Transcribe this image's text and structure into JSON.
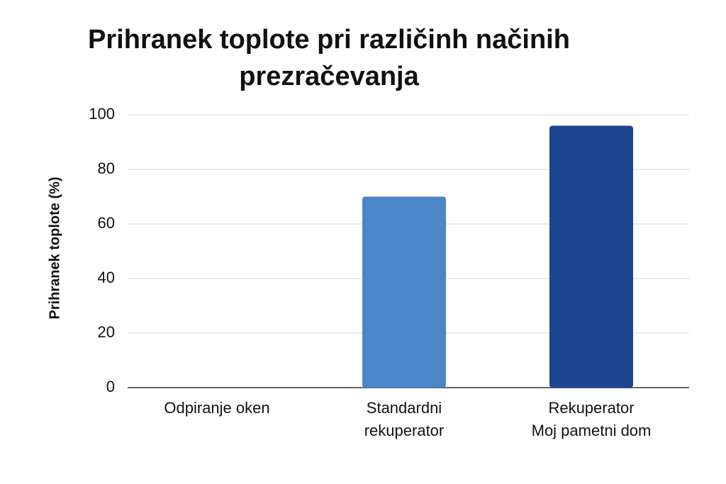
{
  "chart_data": {
    "type": "bar",
    "title": "Prihranek toplote pri različinh načinih prezračevanja",
    "ylabel": "Prihranek toplote (%)",
    "categories": [
      "Odpiranje oken",
      "Standardni\nrekuperator",
      "Rekuperator\nMoj pametni dom"
    ],
    "values": [
      0,
      70,
      96
    ],
    "colors": [
      "#4a86c8",
      "#4a86c8",
      "#1c4592"
    ],
    "ylim": [
      0,
      100
    ],
    "yticks": [
      0,
      20,
      40,
      60,
      80,
      100
    ],
    "grid": true
  }
}
